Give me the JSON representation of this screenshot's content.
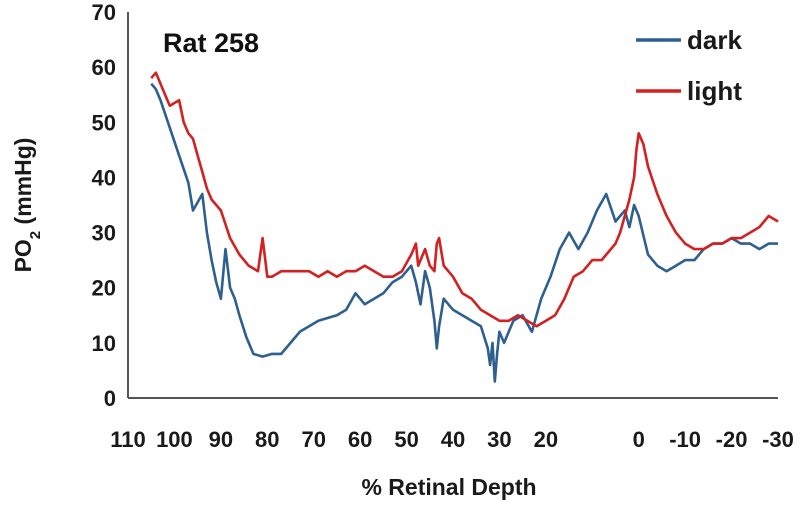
{
  "chart_data": {
    "type": "line",
    "annotation": "Rat 258",
    "xlabel": "% Retinal Depth",
    "ylabel_main": "PO",
    "ylabel_sub": "2",
    "ylabel_unit": " (mmHg)",
    "xlim": [
      110,
      -30
    ],
    "ylim": [
      0,
      70
    ],
    "x_reversed": true,
    "grid": false,
    "legend_position": "top-right",
    "x_ticks": [
      110,
      100,
      90,
      80,
      70,
      60,
      50,
      40,
      30,
      20,
      0,
      -10,
      -20,
      -30
    ],
    "x_tick_labels": [
      "110",
      "100",
      "90",
      "80",
      "70",
      "60",
      "50",
      "40",
      "30",
      "20",
      "0",
      "-10",
      "-20",
      "-30"
    ],
    "y_ticks": [
      0,
      10,
      20,
      30,
      40,
      50,
      60,
      70
    ],
    "y_tick_labels": [
      "0",
      "10",
      "20",
      "30",
      "40",
      "50",
      "60",
      "70"
    ],
    "series": [
      {
        "name": "dark",
        "color": "#2e5f8f",
        "x": [
          105,
          104,
          103,
          101,
          99,
          97,
          96,
          94,
          93,
          92,
          91,
          90,
          89,
          88,
          87,
          86,
          84.5,
          83,
          81,
          79,
          77,
          75,
          73,
          71,
          69,
          67,
          65,
          63,
          61,
          59,
          57,
          55,
          53,
          51,
          49,
          48,
          47,
          46,
          45,
          44,
          43.5,
          43,
          42,
          40,
          38,
          36,
          34,
          32.5,
          32,
          31.5,
          31,
          30.5,
          30,
          29,
          28,
          27,
          25,
          23,
          21,
          19,
          17,
          15,
          13,
          11,
          9,
          7,
          5,
          4,
          3,
          2,
          1,
          0,
          -2,
          -4,
          -6,
          -8,
          -10,
          -12,
          -14,
          -16,
          -18,
          -20,
          -22,
          -24,
          -26,
          -28,
          -30
        ],
        "y": [
          57,
          56,
          54,
          49,
          44,
          39,
          34,
          37,
          30,
          25,
          21,
          18,
          27,
          20,
          18,
          15,
          11,
          8,
          7.5,
          8,
          8,
          10,
          12,
          13,
          14,
          14.5,
          15,
          16,
          19,
          17,
          18,
          19,
          21,
          22,
          24,
          21,
          17,
          23,
          20,
          14,
          9,
          13,
          18,
          16,
          15,
          14,
          13,
          9,
          6,
          10,
          3,
          8,
          12,
          10,
          12,
          14,
          15,
          12,
          18,
          22,
          27,
          30,
          27,
          30,
          34,
          37,
          32,
          33,
          34,
          31,
          35,
          33,
          26,
          24,
          23,
          24,
          25,
          25,
          27,
          28,
          28,
          29,
          28,
          28,
          27,
          28,
          28
        ]
      },
      {
        "name": "light",
        "color": "#d42020",
        "x": [
          105,
          104,
          103,
          102,
          101,
          99,
          98,
          97,
          96,
          95,
          94,
          93,
          92,
          90,
          88,
          86,
          84,
          82,
          81,
          80,
          79,
          77,
          75,
          73,
          71,
          69,
          67,
          65,
          63,
          61,
          59,
          57,
          55,
          53,
          51,
          49,
          48,
          47.5,
          47,
          46,
          45,
          44,
          43.5,
          43,
          42,
          40,
          38,
          36,
          34,
          32,
          30,
          28,
          26,
          24,
          22,
          20,
          18,
          16,
          14,
          12,
          10,
          8,
          6,
          5,
          4,
          3,
          2,
          1,
          0.5,
          0,
          -1,
          -2,
          -4,
          -6,
          -8,
          -10,
          -12,
          -14,
          -16,
          -18,
          -20,
          -22,
          -24,
          -26,
          -28,
          -30
        ],
        "y": [
          58,
          59,
          57,
          55,
          53,
          54,
          50,
          48,
          47,
          44,
          41,
          38,
          36,
          34,
          29,
          26,
          24,
          23,
          29,
          22,
          22,
          23,
          23,
          23,
          23,
          22,
          23,
          22,
          23,
          23,
          24,
          23,
          22,
          22,
          23,
          26,
          28,
          24,
          25,
          27,
          24,
          23,
          28,
          29,
          24,
          22,
          19,
          18,
          16,
          15,
          14,
          14,
          15,
          14,
          13,
          14,
          15,
          18,
          22,
          23,
          25,
          25,
          27,
          28,
          30,
          33,
          36,
          40,
          45,
          48,
          46,
          42,
          37,
          33,
          30,
          28,
          27,
          27,
          28,
          28,
          29,
          29,
          30,
          31,
          33,
          32
        ]
      }
    ]
  }
}
